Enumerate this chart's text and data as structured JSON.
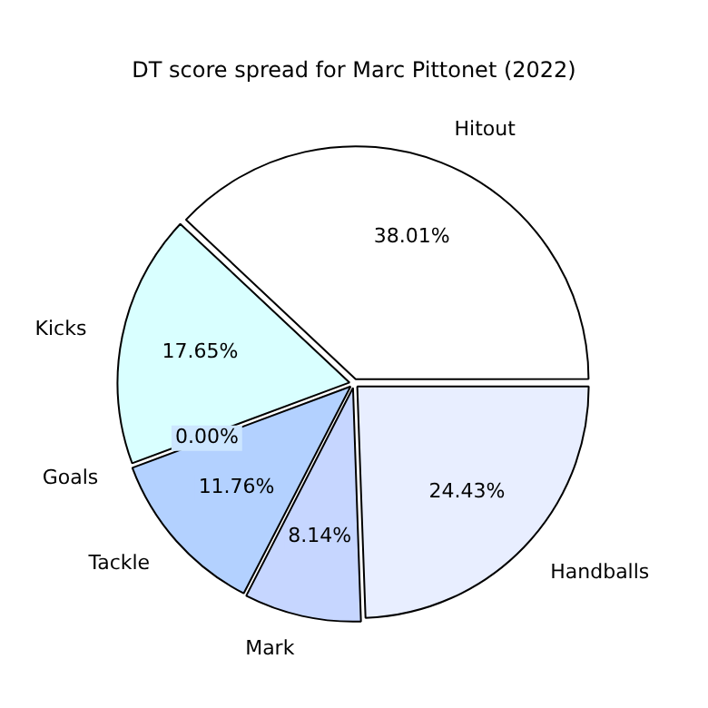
{
  "chart_data": {
    "type": "pie",
    "title": "DT score spread for Marc Pittonet (2022)",
    "categories": [
      "Hitout",
      "Handballs",
      "Mark",
      "Tackle",
      "Goals",
      "Kicks"
    ],
    "values": [
      38.01,
      24.43,
      8.14,
      11.76,
      0.0,
      17.65
    ],
    "value_labels": [
      "38.01%",
      "24.43%",
      "8.14%",
      "11.76%",
      "0.00%",
      "17.65%"
    ],
    "colors": [
      "#ffffff",
      "#e8eeff",
      "#c6d6ff",
      "#b3d1ff",
      "#cce6ff",
      "#d9ffff"
    ],
    "legend": false
  }
}
